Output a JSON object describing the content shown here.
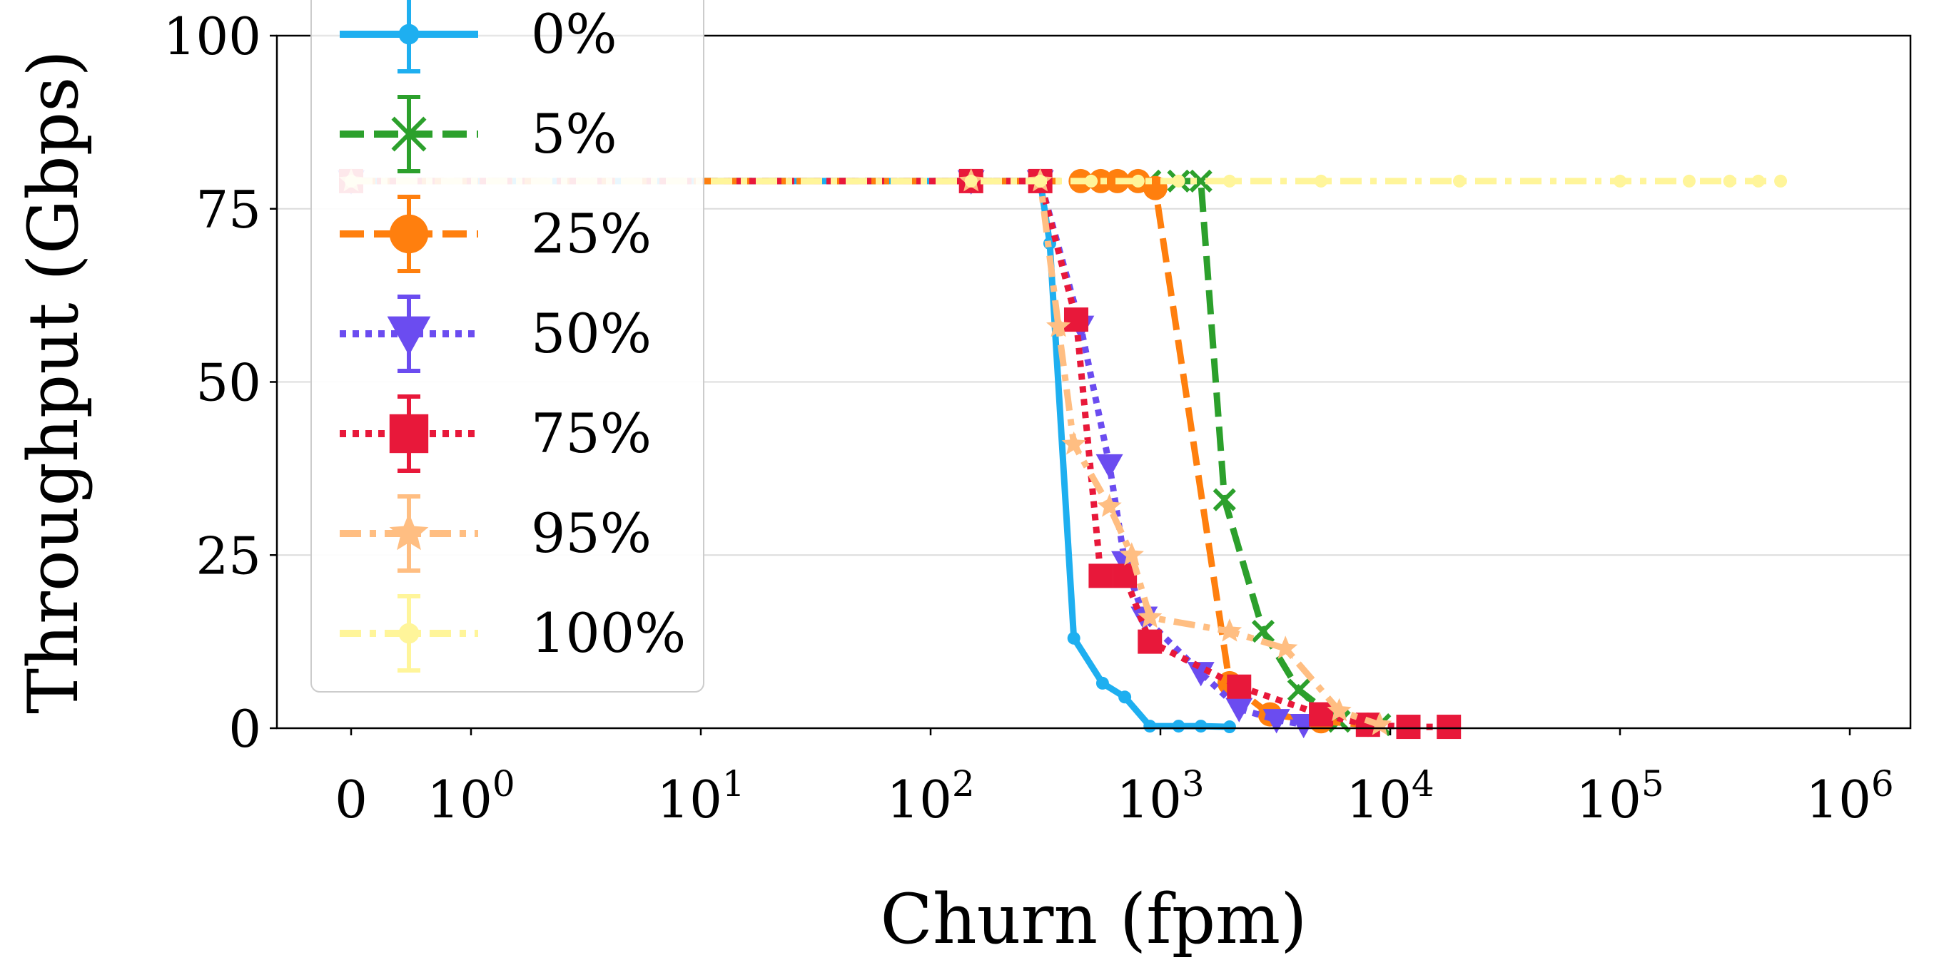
{
  "chart_data": {
    "type": "line",
    "title": "",
    "xlabel": "Churn (fpm)",
    "ylabel": "Throughput (Gbps)",
    "xscale": "symlog",
    "xlim": [
      0,
      1000000
    ],
    "ylim": [
      0,
      100
    ],
    "grid": "horizontal",
    "legend_position": "top-left",
    "x_ticks": [
      {
        "value": 0,
        "label": "0"
      },
      {
        "value": 1,
        "base": "10",
        "exp": "0"
      },
      {
        "value": 10,
        "base": "10",
        "exp": "1"
      },
      {
        "value": 100,
        "base": "10",
        "exp": "2"
      },
      {
        "value": 1000,
        "base": "10",
        "exp": "3"
      },
      {
        "value": 10000,
        "base": "10",
        "exp": "4"
      },
      {
        "value": 100000,
        "base": "10",
        "exp": "5"
      },
      {
        "value": 1000000,
        "base": "10",
        "exp": "6"
      }
    ],
    "y_ticks": [
      0,
      25,
      50,
      75,
      100
    ],
    "series": [
      {
        "name": "0%",
        "color": "#1eaff0",
        "dash": "solid",
        "marker": "point",
        "points": [
          [
            0,
            79
          ],
          [
            150,
            79
          ],
          [
            300,
            79
          ],
          [
            330,
            70
          ],
          [
            420,
            13
          ],
          [
            560,
            6.5
          ],
          [
            700,
            4.5
          ],
          [
            900,
            0.3
          ],
          [
            1200,
            0.3
          ],
          [
            1500,
            0.3
          ],
          [
            2000,
            0.2
          ]
        ]
      },
      {
        "name": "5%",
        "color": "#2ca02c",
        "dash": "dashed",
        "marker": "x",
        "points": [
          [
            0,
            79
          ],
          [
            150,
            79
          ],
          [
            300,
            79
          ],
          [
            600,
            79
          ],
          [
            900,
            79
          ],
          [
            1200,
            79
          ],
          [
            1500,
            79
          ],
          [
            1900,
            33
          ],
          [
            2800,
            14
          ],
          [
            4000,
            5.5
          ],
          [
            6000,
            1
          ],
          [
            9000,
            0.5
          ]
        ]
      },
      {
        "name": "25%",
        "color": "#ff7f0e",
        "dash": "dashed",
        "marker": "circle",
        "points": [
          [
            0,
            79
          ],
          [
            150,
            79
          ],
          [
            300,
            79
          ],
          [
            450,
            79
          ],
          [
            550,
            79
          ],
          [
            650,
            79
          ],
          [
            800,
            79
          ],
          [
            950,
            78
          ],
          [
            2000,
            6.5
          ],
          [
            3000,
            2
          ],
          [
            5000,
            1
          ],
          [
            8000,
            0.5
          ]
        ]
      },
      {
        "name": "50%",
        "color": "#6b4cf0",
        "dash": "dotted",
        "marker": "triangle-down",
        "points": [
          [
            0,
            79
          ],
          [
            150,
            79
          ],
          [
            300,
            79
          ],
          [
            450,
            58
          ],
          [
            600,
            38
          ],
          [
            700,
            24
          ],
          [
            850,
            16
          ],
          [
            1500,
            8
          ],
          [
            2200,
            2.8
          ],
          [
            3200,
            1.2
          ],
          [
            4200,
            0.5
          ]
        ]
      },
      {
        "name": "75%",
        "color": "#e8183a",
        "dash": "dotted",
        "marker": "square",
        "points": [
          [
            0,
            79
          ],
          [
            150,
            79
          ],
          [
            300,
            79
          ],
          [
            430,
            59
          ],
          [
            550,
            22
          ],
          [
            700,
            22
          ],
          [
            900,
            12.5
          ],
          [
            2200,
            6
          ],
          [
            5000,
            2
          ],
          [
            8000,
            0.5
          ],
          [
            12000,
            0.2
          ],
          [
            18000,
            0.2
          ]
        ]
      },
      {
        "name": "95%",
        "color": "#ffbe82",
        "dash": "dashdot",
        "marker": "star",
        "points": [
          [
            0,
            79
          ],
          [
            150,
            79
          ],
          [
            300,
            79
          ],
          [
            360,
            58
          ],
          [
            420,
            41
          ],
          [
            600,
            32
          ],
          [
            750,
            25
          ],
          [
            900,
            16
          ],
          [
            2000,
            14
          ],
          [
            3500,
            11.5
          ],
          [
            6000,
            2.5
          ],
          [
            9000,
            0.5
          ]
        ]
      },
      {
        "name": "100%",
        "color": "#fff59a",
        "dash": "dashdot",
        "marker": "point",
        "points": [
          [
            0,
            79
          ],
          [
            150,
            79
          ],
          [
            300,
            79
          ],
          [
            500,
            79
          ],
          [
            800,
            79
          ],
          [
            1200,
            79
          ],
          [
            2000,
            79
          ],
          [
            5000,
            79
          ],
          [
            20000,
            79
          ],
          [
            100000,
            79
          ],
          [
            200000,
            79
          ],
          [
            300000,
            79
          ],
          [
            400000,
            79
          ],
          [
            500000,
            79
          ]
        ]
      }
    ]
  }
}
